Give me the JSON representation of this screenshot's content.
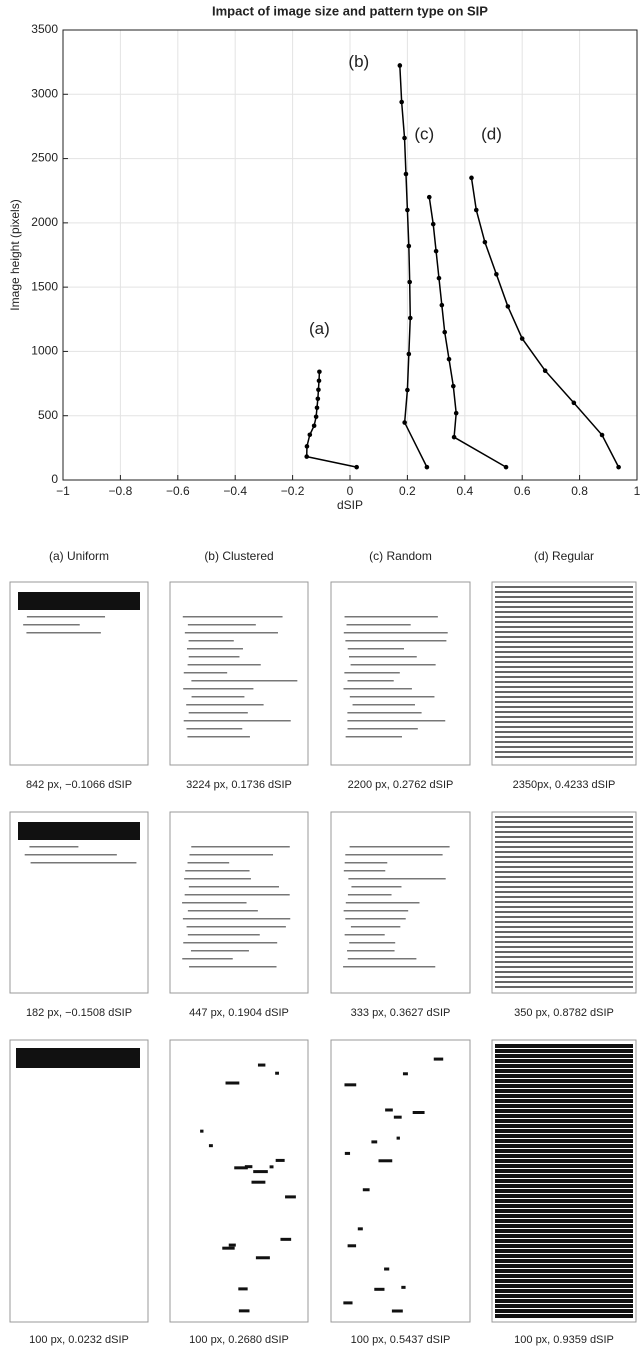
{
  "chart_data": {
    "type": "line",
    "title": "Impact of image size and pattern type on SIP",
    "xlabel": "dSIP",
    "ylabel": "Image height (pixels)",
    "xlim": [
      -1,
      1
    ],
    "xticks": [
      {
        "value": -1,
        "label": "−1"
      },
      {
        "value": -0.8,
        "label": "−0.8"
      },
      {
        "value": -0.6,
        "label": "−0.6"
      },
      {
        "value": -0.4,
        "label": "−0.4"
      },
      {
        "value": -0.2,
        "label": "−0.2"
      },
      0,
      0.2,
      0.4,
      0.6,
      0.8,
      1
    ],
    "ylim": [
      0,
      3500
    ],
    "yticks": [
      0,
      500,
      1000,
      1500,
      2000,
      2500,
      3000,
      3500
    ],
    "grid": true,
    "series": [
      {
        "label": "(a)",
        "color": "#000000",
        "x": [
          -0.1066,
          -0.108,
          -0.11,
          -0.112,
          -0.115,
          -0.118,
          -0.125,
          -0.14,
          -0.15,
          -0.1508,
          0.0232
        ],
        "values": [
          842,
          772,
          702,
          632,
          562,
          492,
          422,
          352,
          262,
          182,
          100
        ]
      },
      {
        "label": "(b)",
        "color": "#000000",
        "x": [
          0.1736,
          0.18,
          0.19,
          0.195,
          0.2,
          0.205,
          0.208,
          0.21,
          0.205,
          0.2,
          0.1904,
          0.268
        ],
        "values": [
          3224,
          2940,
          2660,
          2380,
          2100,
          1820,
          1540,
          1260,
          980,
          700,
          447,
          100
        ]
      },
      {
        "label": "(c)",
        "color": "#000000",
        "x": [
          0.2762,
          0.29,
          0.3,
          0.31,
          0.32,
          0.33,
          0.345,
          0.36,
          0.37,
          0.3627,
          0.5437
        ],
        "values": [
          2200,
          1990,
          1780,
          1570,
          1360,
          1150,
          940,
          730,
          520,
          333,
          100
        ]
      },
      {
        "label": "(d)",
        "color": "#000000",
        "x": [
          0.4233,
          0.44,
          0.47,
          0.51,
          0.55,
          0.6,
          0.68,
          0.78,
          0.8782,
          0.9359
        ],
        "values": [
          2350,
          2100,
          1850,
          1600,
          1350,
          1100,
          850,
          600,
          350,
          100
        ]
      }
    ]
  },
  "figure": {
    "headers": [
      "(a) Uniform",
      "(b) Clustered",
      "(c) Random",
      "(d) Regular"
    ],
    "rows": [
      [
        "842 px, −0.1066 dSIP",
        "3224 px, 0.1736 dSIP",
        "2200 px, 0.2762 dSIP",
        "2350px, 0.4233 dSIP"
      ],
      [
        "182 px, −0.1508 dSIP",
        "447 px, 0.1904 dSIP",
        "333 px, 0.3627 dSIP",
        "350 px, 0.8782 dSIP"
      ],
      [
        "100 px, 0.0232 dSIP",
        "100 px, 0.2680 dSIP",
        "100 px, 0.5437 dSIP",
        "100 px, 0.9359 dSIP"
      ]
    ]
  }
}
